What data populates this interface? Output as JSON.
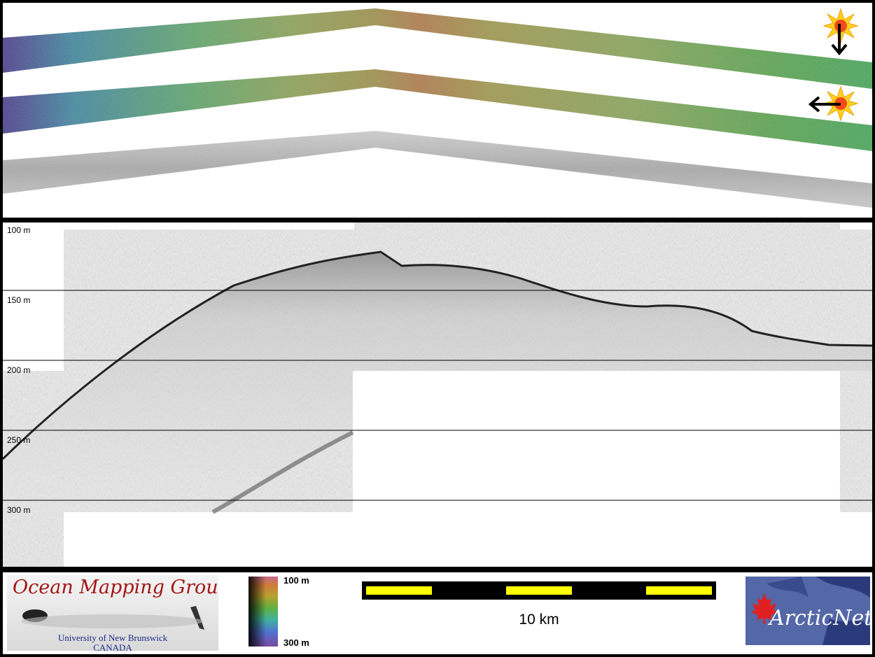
{
  "profile": {
    "depth_labels": [
      "100 m",
      "150 m",
      "200 m",
      "250 m",
      "300 m"
    ]
  },
  "legend": {
    "colorbar_top": "100 m",
    "colorbar_bottom": "300 m",
    "scale": "10 km"
  },
  "logos": {
    "omg_title": "Ocean Mapping Group",
    "omg_university": "University of New Brunswick",
    "omg_country": "CANADA",
    "arcticnet": "ArcticNet"
  },
  "colors": {
    "frame": "#000000",
    "scalebar_fill": "#ffff00",
    "omg_red": "#a31515",
    "omg_blue": "#1a2a8a",
    "arcticnet_bg": "#5467a6"
  },
  "icons": [
    "sun-icon",
    "arrow-down-icon",
    "arrow-left-icon",
    "maple-leaf-icon"
  ]
}
